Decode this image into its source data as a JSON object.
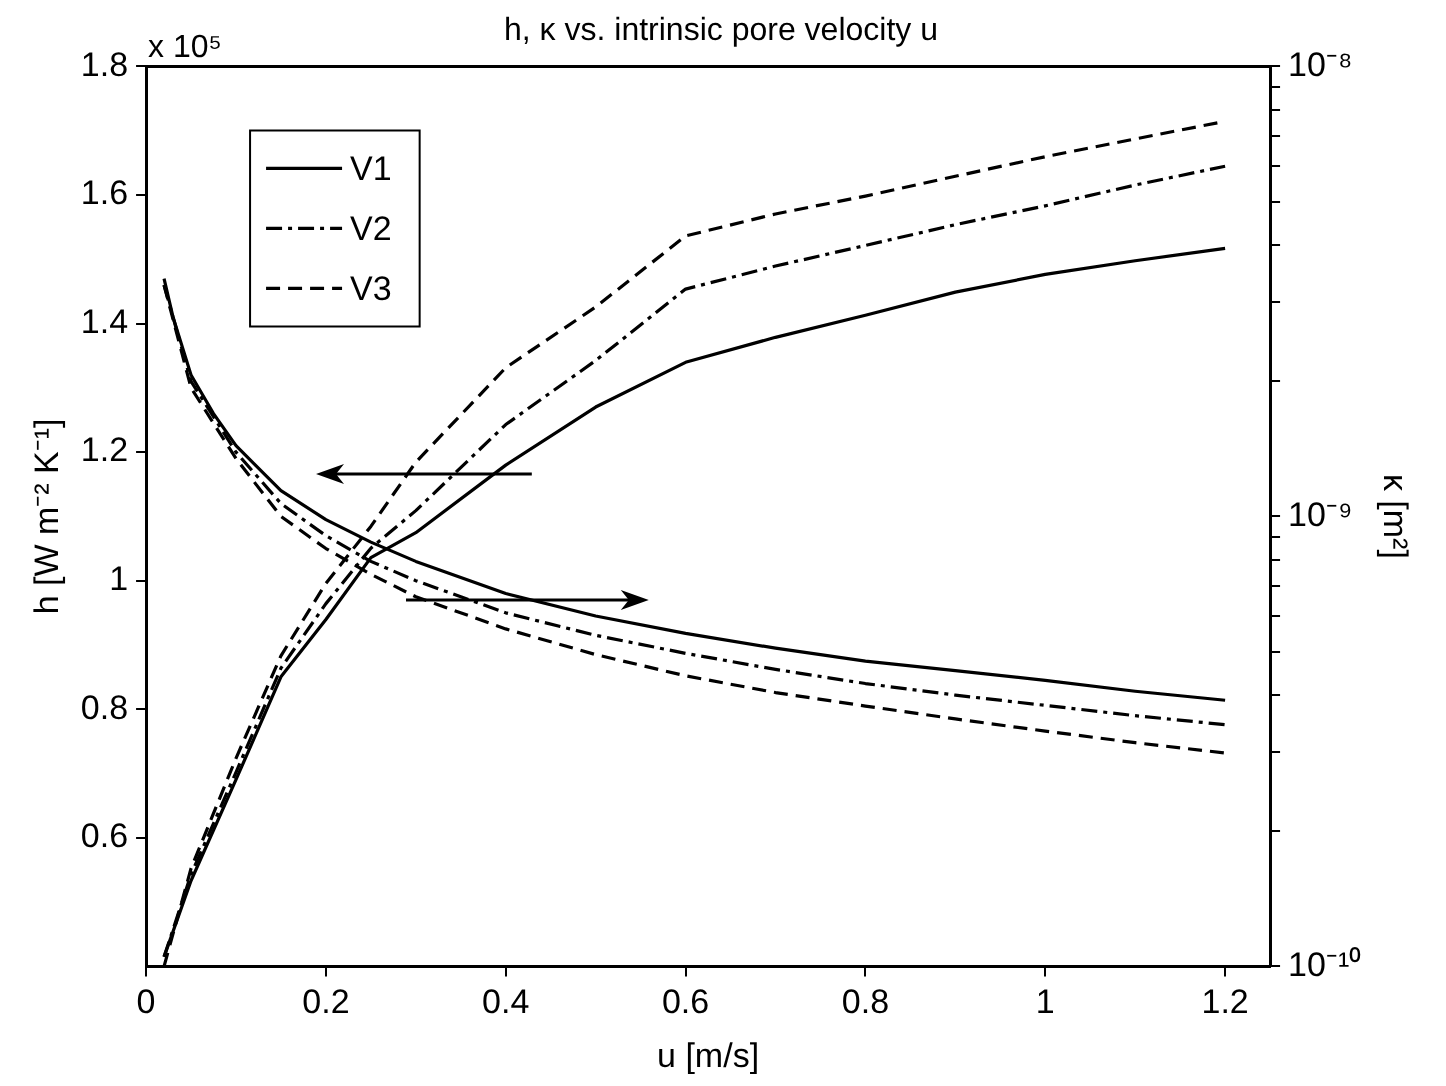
{
  "chart_data": {
    "type": "line",
    "title": "h, κ vs. intrinsic pore velocity u",
    "xlabel": "u [m/s]",
    "ylabel": "h [W m⁻² K⁻¹]",
    "y2label": "κ [m²]",
    "annotations": [
      "x 10⁵"
    ],
    "xlim": [
      0,
      1.25
    ],
    "xticks": [
      0,
      0.2,
      0.4,
      0.6,
      0.8,
      1,
      1.2
    ],
    "ylim": [
      0.4,
      1.8
    ],
    "yticks": [
      0.6,
      0.8,
      1,
      1.2,
      1.4,
      1.6,
      1.8
    ],
    "y2lim": [
      1e-10,
      1e-08
    ],
    "y2ticks": [
      {
        "value": 1e-10,
        "label": "10⁻¹⁰"
      },
      {
        "value": 2e-10,
        "label": null
      },
      {
        "value": 3e-10,
        "label": null
      },
      {
        "value": 4e-10,
        "label": null
      },
      {
        "value": 5e-10,
        "label": null
      },
      {
        "value": 6e-10,
        "label": null
      },
      {
        "value": 7e-10,
        "label": null
      },
      {
        "value": 8e-10,
        "label": null
      },
      {
        "value": 9e-10,
        "label": null
      },
      {
        "value": 1e-09,
        "label": "10⁻⁹"
      },
      {
        "value": 2e-09,
        "label": null
      },
      {
        "value": 3e-09,
        "label": null
      },
      {
        "value": 4e-09,
        "label": null
      },
      {
        "value": 5e-09,
        "label": null
      },
      {
        "value": 6e-09,
        "label": null
      },
      {
        "value": 7e-09,
        "label": null
      },
      {
        "value": 8e-09,
        "label": null
      },
      {
        "value": 9e-09,
        "label": null
      },
      {
        "value": 1e-08,
        "label": "10⁻⁸"
      }
    ],
    "log": "y2",
    "legend": "top left",
    "series": [
      {
        "name": "V1",
        "color": "#000000",
        "line_style": "solid",
        "axis": "y",
        "x": [
          0.02,
          0.03,
          0.05,
          0.075,
          0.1,
          0.15,
          0.2,
          0.25,
          0.3,
          0.4,
          0.5,
          0.6,
          0.7,
          0.8,
          0.9,
          1.0,
          1.1,
          1.2
        ],
        "values": [
          1.47,
          1.41,
          1.32,
          1.26,
          1.21,
          1.14,
          1.095,
          1.06,
          1.03,
          0.98,
          0.945,
          0.918,
          0.895,
          0.875,
          0.86,
          0.845,
          0.828,
          0.814
        ]
      },
      {
        "name": "V2",
        "color": "#000000",
        "line_style": "dashdot",
        "axis": "y",
        "x": [
          0.02,
          0.05,
          0.1,
          0.15,
          0.2,
          0.25,
          0.3,
          0.4,
          0.5,
          0.6,
          0.7,
          0.8,
          0.9,
          1.0,
          1.1,
          1.2
        ],
        "values": [
          1.46,
          1.31,
          1.2,
          1.12,
          1.07,
          1.03,
          1.0,
          0.95,
          0.915,
          0.887,
          0.862,
          0.84,
          0.822,
          0.806,
          0.79,
          0.776
        ]
      },
      {
        "name": "V3",
        "color": "#000000",
        "line_style": "dashed",
        "axis": "y",
        "x": [
          0.02,
          0.05,
          0.1,
          0.15,
          0.2,
          0.25,
          0.3,
          0.4,
          0.5,
          0.6,
          0.7,
          0.8,
          0.9,
          1.0,
          1.1,
          1.2
        ],
        "values": [
          1.46,
          1.3,
          1.19,
          1.1,
          1.05,
          1.01,
          0.975,
          0.925,
          0.885,
          0.852,
          0.826,
          0.805,
          0.785,
          0.766,
          0.748,
          0.732
        ]
      },
      {
        "color": "#000000",
        "line_style": "solid",
        "axis": "y2",
        "x": [
          0.02,
          0.05,
          0.1,
          0.15,
          0.2,
          0.25,
          0.3,
          0.4,
          0.5,
          0.6,
          0.7,
          0.8,
          0.9,
          1.0,
          1.1,
          1.2
        ],
        "values": [
          1.05e-10,
          1.55e-10,
          2.6e-10,
          4.4e-10,
          5.9e-10,
          8.1e-10,
          9.2e-10,
          1.3e-09,
          1.75e-09,
          2.2e-09,
          2.5e-09,
          2.8e-09,
          3.15e-09,
          3.45e-09,
          3.7e-09,
          3.94e-09
        ]
      },
      {
        "color": "#000000",
        "line_style": "dashdot",
        "axis": "y2",
        "x": [
          0.02,
          0.05,
          0.1,
          0.15,
          0.2,
          0.25,
          0.3,
          0.4,
          0.5,
          0.6,
          0.7,
          0.8,
          0.9,
          1.0,
          1.1,
          1.2
        ],
        "values": [
          1.05e-10,
          1.6e-10,
          2.7e-10,
          4.6e-10,
          6.4e-10,
          8.5e-10,
          1.03e-09,
          1.6e-09,
          2.22e-09,
          3.2e-09,
          3.6e-09,
          4e-09,
          4.45e-09,
          4.9e-09,
          5.45e-09,
          6e-09
        ]
      },
      {
        "color": "#000000",
        "line_style": "dashed",
        "axis": "y2",
        "x": [
          0.02,
          0.05,
          0.1,
          0.15,
          0.2,
          0.25,
          0.3,
          0.4,
          0.5,
          0.6,
          0.7,
          0.8,
          0.9,
          1.0,
          1.1,
          1.2
        ],
        "values": [
          1e-10,
          1.65e-10,
          2.9e-10,
          4.9e-10,
          7.1e-10,
          9.5e-10,
          1.32e-09,
          2.14e-09,
          2.92e-09,
          4.2e-09,
          4.7e-09,
          5.15e-09,
          5.7e-09,
          6.3e-09,
          6.9e-09,
          7.55e-09
        ]
      }
    ]
  }
}
